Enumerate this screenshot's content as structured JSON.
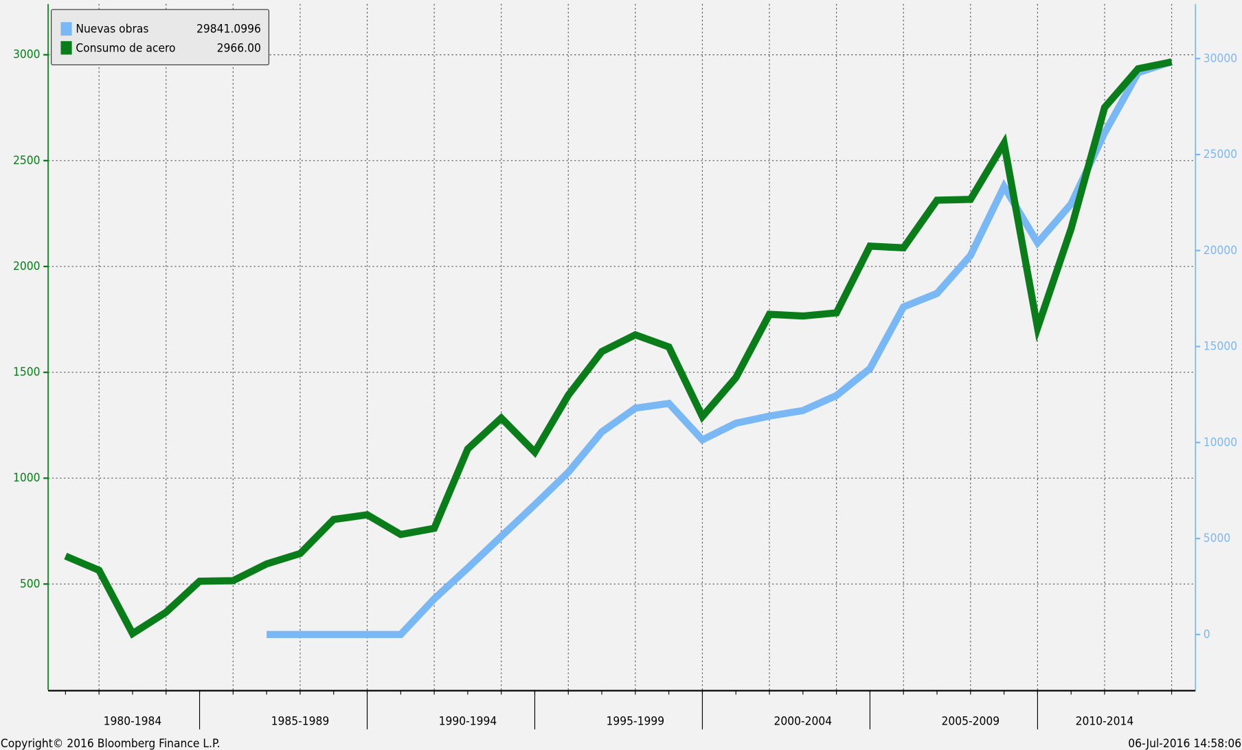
{
  "chart_data": {
    "type": "line",
    "categories": [
      null,
      null,
      "1980-1984",
      null,
      null,
      null,
      null,
      "1985-1989",
      null,
      null,
      null,
      null,
      "1990-1994",
      null,
      null,
      null,
      null,
      "1995-1999",
      null,
      null,
      null,
      null,
      "2000-2004",
      null,
      null,
      null,
      null,
      "2005-2009",
      null,
      null,
      null,
      "2010-2014",
      null,
      null
    ],
    "series": [
      {
        "name": "Nuevas obras",
        "legend_value": "29841.0996",
        "color": "#7ab8f5",
        "axis": "y2",
        "values": [
          null,
          null,
          null,
          null,
          null,
          null,
          0,
          0,
          0,
          0,
          0,
          1855,
          3462,
          5111,
          6760,
          8450,
          10552,
          11789,
          12036,
          10140,
          11006,
          11377,
          11665,
          12448,
          13850,
          17065,
          17766,
          19744,
          23331,
          20404,
          22424,
          26133,
          29266,
          29841.0996
        ]
      },
      {
        "name": "Consumo de acero",
        "legend_value": "2966.00",
        "color": "#0a7d1a",
        "axis": "y",
        "values": [
          632,
          565,
          266,
          367,
          513,
          516,
          595,
          644,
          805,
          827,
          734,
          763,
          1138,
          1284,
          1123,
          1392,
          1598,
          1677,
          1620,
          1291,
          1475,
          1774,
          1766,
          1781,
          2096,
          2088,
          2313,
          2317,
          2582,
          1710,
          2178,
          2751,
          2934,
          2966
        ]
      }
    ],
    "ylim": [
      0,
      3240
    ],
    "yticks": [
      500,
      1000,
      1500,
      2000,
      2500,
      3000
    ],
    "y2lim": [
      -2885,
      32844
    ],
    "y2ticks": [
      0,
      5000,
      10000,
      15000,
      20000,
      25000,
      30000
    ],
    "grid": true,
    "footer_left": "Copyright© 2016 Bloomberg Finance L.P.",
    "footer_right": "06-Jul-2016 14:58:06"
  }
}
